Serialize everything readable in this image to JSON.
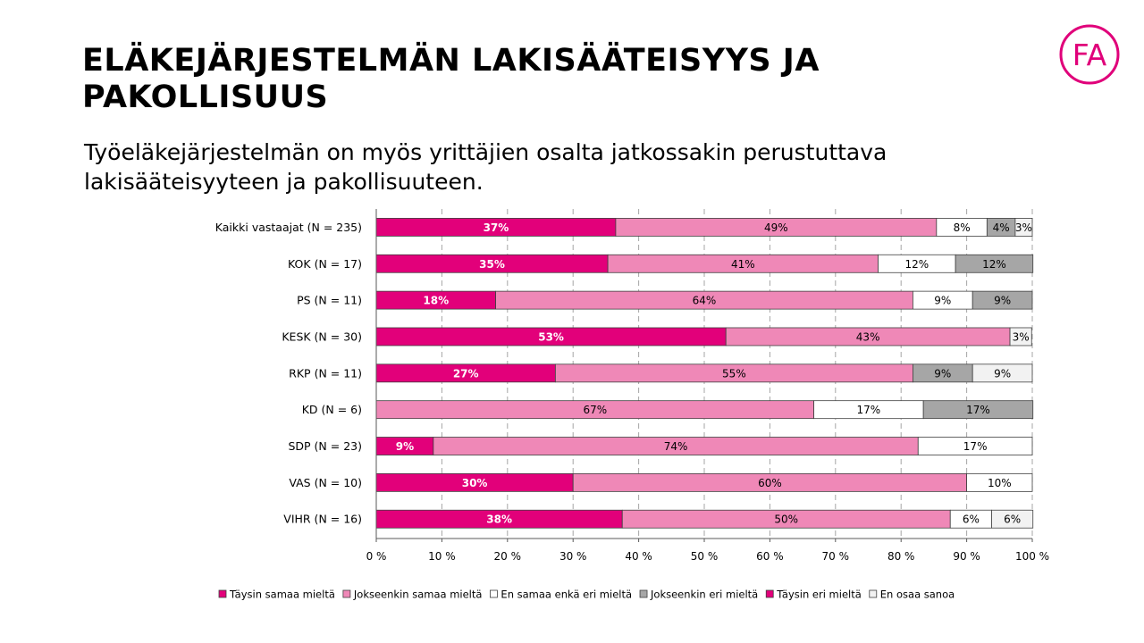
{
  "slide": {
    "title": "ELÄKEJÄRJESTELMÄN LAKISÄÄTEISYYS JA PAKOLLISUUS",
    "subtitle": "Työeläkejärjestelmän on myös yrittäjien osalta jatkossakin perustuttava lakisääteisyyteen ja pakollisuuteen.",
    "logo_text": "FA",
    "logo_color": "#e0007a"
  },
  "chart_data": {
    "type": "bar",
    "orientation": "horizontal",
    "stacked": true,
    "categories": [
      "Kaikki vastaajat (N = 235)",
      "KOK (N = 17)",
      "PS (N = 11)",
      "KESK (N = 30)",
      "RKP (N = 11)",
      "KD (N = 6)",
      "SDP (N = 23)",
      "VAS (N = 10)",
      "VIHR (N = 16)"
    ],
    "series": [
      {
        "name": "Täysin samaa mieltä",
        "color": "#e2007a",
        "label_color": "#ffffff",
        "label_bold": true,
        "values": [
          36.5,
          35.3,
          18.2,
          53.3,
          27.3,
          0,
          8.7,
          30,
          37.5
        ],
        "labels": [
          "37%",
          "35%",
          "18%",
          "53%",
          "27%",
          "",
          "9%",
          "30%",
          "38%"
        ]
      },
      {
        "name": "Jokseenkin samaa mieltä",
        "color": "#ef88b7",
        "label_color": "#000000",
        "label_bold": false,
        "values": [
          48.9,
          41.2,
          63.6,
          43.3,
          54.5,
          66.7,
          73.9,
          60,
          50
        ],
        "labels": [
          "49%",
          "41%",
          "64%",
          "43%",
          "55%",
          "67%",
          "74%",
          "60%",
          "50%"
        ]
      },
      {
        "name": "En samaa enkä eri mieltä",
        "color": "#ffffff",
        "label_color": "#000000",
        "label_bold": false,
        "values": [
          7.7,
          11.8,
          9.1,
          0,
          0,
          16.7,
          17.4,
          10,
          6.3
        ],
        "labels": [
          "8%",
          "12%",
          "9%",
          "",
          "",
          "17%",
          "17%",
          "10%",
          "6%"
        ]
      },
      {
        "name": "Jokseenkin eri mieltä",
        "color": "#a6a6a6",
        "label_color": "#000000",
        "label_bold": false,
        "values": [
          4.3,
          11.8,
          9.1,
          0,
          9.1,
          16.7,
          0,
          0,
          0
        ],
        "labels": [
          "4%",
          "12%",
          "9%",
          "",
          "9%",
          "17%",
          "",
          "",
          ""
        ]
      },
      {
        "name": "Täysin eri mieltä",
        "color": "#e2007a",
        "label_color": "#ffffff",
        "label_bold": true,
        "values": [
          0,
          0,
          0,
          0,
          0,
          0,
          0,
          0,
          0
        ],
        "labels": [
          "",
          "",
          "",
          "",
          "",
          "",
          "",
          "",
          ""
        ]
      },
      {
        "name": "En osaa sanoa",
        "color": "#f2f2f2",
        "label_color": "#000000",
        "label_bold": false,
        "values": [
          2.6,
          0,
          0,
          3.3,
          9.1,
          0,
          0,
          0,
          6.3
        ],
        "labels": [
          "3%",
          "",
          "",
          "3%",
          "9%",
          "",
          "",
          "",
          "6%"
        ]
      }
    ],
    "xlim": [
      0,
      100
    ],
    "xticks": [
      "0 %",
      "10 %",
      "20 %",
      "30 %",
      "40 %",
      "50 %",
      "60 %",
      "70 %",
      "80 %",
      "90 %",
      "100 %"
    ],
    "grid": "vertical dashed",
    "legend": "bottom"
  }
}
